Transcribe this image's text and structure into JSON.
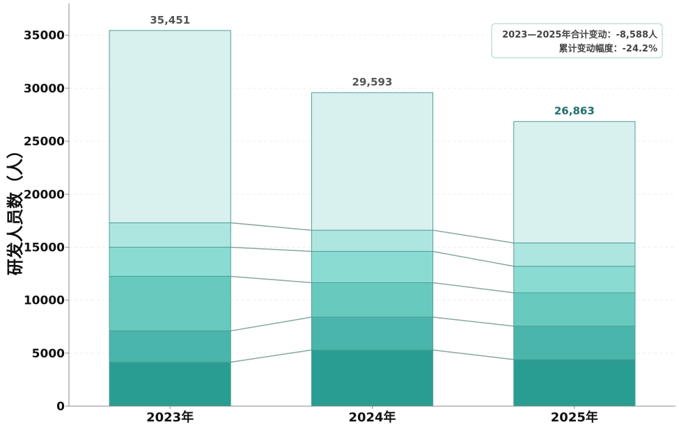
{
  "chart_data": {
    "type": "bar",
    "stacked": true,
    "categories": [
      "2023年",
      "2024年",
      "2025年"
    ],
    "totals": [
      35451,
      29593,
      26863
    ],
    "total_labels": [
      "35,451",
      "29,593",
      "26,863"
    ],
    "series": [
      {
        "values": [
          4150,
          5300,
          4400
        ],
        "color": "#2a9d92"
      },
      {
        "values": [
          2950,
          3100,
          3150
        ],
        "color": "#49b5ab"
      },
      {
        "values": [
          5150,
          3250,
          3150
        ],
        "color": "#68cabf"
      },
      {
        "values": [
          2750,
          2950,
          2500
        ],
        "color": "#8adcd3"
      },
      {
        "values": [
          2300,
          2000,
          2200
        ],
        "color": "#ade6e0"
      },
      {
        "values": [
          18151,
          12993,
          11463
        ],
        "color": "#d8f1ee"
      }
    ],
    "ylabel": "研发人员数（人）",
    "xlabel": "",
    "ylim": [
      0,
      38000
    ],
    "yticks": [
      0,
      5000,
      10000,
      15000,
      20000,
      25000,
      30000,
      35000
    ],
    "grid": true,
    "legend": "none",
    "connector_color": "#8aa5a1",
    "annotation": {
      "line1": "2023—2025年合计变动：-8,588人",
      "line2": "累计变动幅度：-24.2%",
      "placement": "top-right"
    }
  }
}
